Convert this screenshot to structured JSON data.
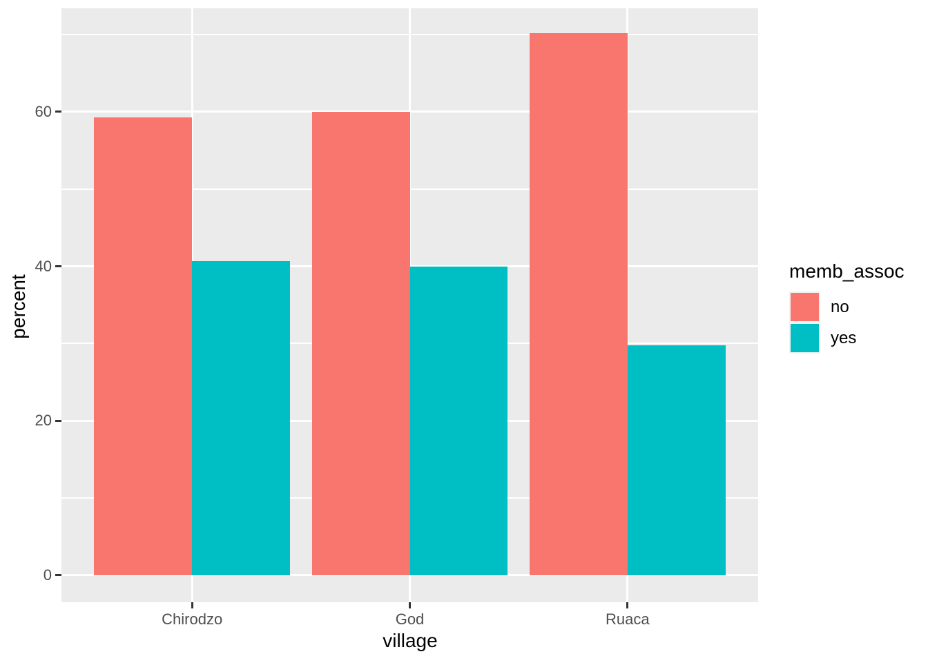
{
  "figure": {
    "background": "#FFFFFF",
    "panel_background": "#EBEBEB",
    "gridline_color": "#FFFFFF",
    "tick_mark_color": "#333333",
    "axis_text_color": "#4D4D4D",
    "axis_title_color": "#000000"
  },
  "chart_data": {
    "type": "bar",
    "title": "",
    "xlabel": "village",
    "ylabel": "percent",
    "categories": [
      "Chirodzo",
      "God",
      "Ruaca"
    ],
    "series": [
      {
        "name": "no",
        "color": "#F8766D",
        "values": [
          59.3,
          60.0,
          70.2
        ]
      },
      {
        "name": "yes",
        "color": "#00BFC4",
        "values": [
          40.7,
          40.0,
          29.8
        ]
      }
    ],
    "y_ticks": [
      0,
      20,
      40,
      60
    ],
    "y_minor_ticks": [
      10,
      30,
      50,
      70
    ],
    "ylim": [
      -3.5,
      73.4
    ],
    "grid": true,
    "legend": {
      "title": "memb_assoc",
      "position": "right",
      "labels": [
        "no",
        "yes"
      ]
    }
  }
}
